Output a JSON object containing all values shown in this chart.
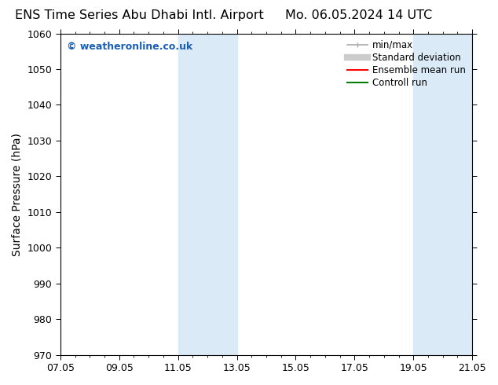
{
  "title_left": "ENS Time Series Abu Dhabi Intl. Airport",
  "title_right": "Mo. 06.05.2024 14 UTC",
  "ylabel": "Surface Pressure (hPa)",
  "ylim": [
    970,
    1060
  ],
  "yticks": [
    970,
    980,
    990,
    1000,
    1010,
    1020,
    1030,
    1040,
    1050,
    1060
  ],
  "xtick_labels": [
    "07.05",
    "09.05",
    "11.05",
    "13.05",
    "15.05",
    "17.05",
    "19.05",
    "21.05"
  ],
  "xtick_positions": [
    0,
    2,
    4,
    6,
    8,
    10,
    12,
    14
  ],
  "xlim": [
    0,
    14
  ],
  "shaded_regions": [
    {
      "xstart": 4.0,
      "xend": 6.0,
      "color": "#daeaf7"
    },
    {
      "xstart": 12.0,
      "xend": 14.0,
      "color": "#daeaf7"
    }
  ],
  "watermark_text": "© weatheronline.co.uk",
  "watermark_color": "#1a5fb4",
  "background_color": "#ffffff",
  "plot_bg_color": "#ffffff",
  "legend_items": [
    {
      "label": "min/max",
      "color": "#aaaaaa",
      "lw": 1.2,
      "linestyle": "-",
      "marker": "|"
    },
    {
      "label": "Standard deviation",
      "color": "#cccccc",
      "lw": 6,
      "linestyle": "-"
    },
    {
      "label": "Ensemble mean run",
      "color": "#ff0000",
      "lw": 1.5,
      "linestyle": "-"
    },
    {
      "label": "Controll run",
      "color": "#008000",
      "lw": 1.5,
      "linestyle": "-"
    }
  ],
  "title_fontsize": 11.5,
  "ylabel_fontsize": 10,
  "tick_fontsize": 9,
  "watermark_fontsize": 9,
  "legend_fontsize": 8.5
}
